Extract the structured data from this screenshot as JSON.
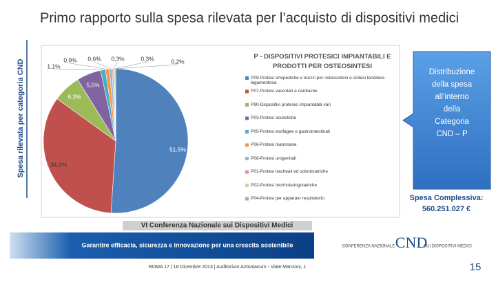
{
  "slide": {
    "title": "Primo rapporto sulla spesa rilevata per l’acquisto di dispositivi medici",
    "side_label": "Spesa rilevata per categoria CND",
    "callout": [
      "Distribuzione",
      "della spesa",
      "all’interno",
      "della",
      "Categoria",
      "CND – P"
    ],
    "total": [
      "Spesa Complessiva:",
      "560.251.027 €"
    ],
    "page_number": "15",
    "banner": {
      "conference": "VI Conferenza Nazionale sui Dispositivi Medici",
      "motto": "Garantire efficacia, sicurezza e innovazione per una crescita sostenibile",
      "venue": "ROMA 17 | 18 Dicembre 2013 | Auditorium Antonianum - Viale Manzoni, 1"
    },
    "logo": {
      "left": "CONFERENZA NAZIONALE",
      "mark": "CND",
      "right": "SUI DISPOSITIVI MEDICI"
    }
  },
  "chart_data": {
    "type": "pie",
    "title": "P - DISPOSITIVI PROTESICI IMPIANTABILI E PRODOTTI PER OSTEOSINTESI",
    "categories": [
      "P09-Protesi ortopediche e mezzi per osteosintesi e sintesi tendineo-legamentosa",
      "P07-Protesi vascolari e cardiache",
      "P90-Dispositivi protesici impiantabili-vari",
      "P03-Protesi oculistiche",
      "P05-Protesi esofagee e gastrointestinali",
      "P06-Protesi mammarie",
      "P08-Protesi urogenitali",
      "P01-Protesi tracheali ed odontoiatriche",
      "P02-Protesi otorinolaringoiatriche",
      "P04-Protesi per apparato respiratorio"
    ],
    "values": [
      51.5,
      34.2,
      6.3,
      5.5,
      1.1,
      0.9,
      0.6,
      0.3,
      0.3,
      0.2
    ],
    "value_labels": [
      "51,5%",
      "34,2%",
      "6,3%",
      "5,5%",
      "1,1%",
      "0,9%",
      "0,6%",
      "0,3%",
      "0,3%",
      "0,2%"
    ],
    "colors": [
      "#4f81bd",
      "#c0504d",
      "#9bbb59",
      "#8064a2",
      "#4bacc6",
      "#f79646",
      "#93b6dd",
      "#d99694",
      "#c3d69b",
      "#b3a2c7"
    ],
    "legend": "right"
  }
}
